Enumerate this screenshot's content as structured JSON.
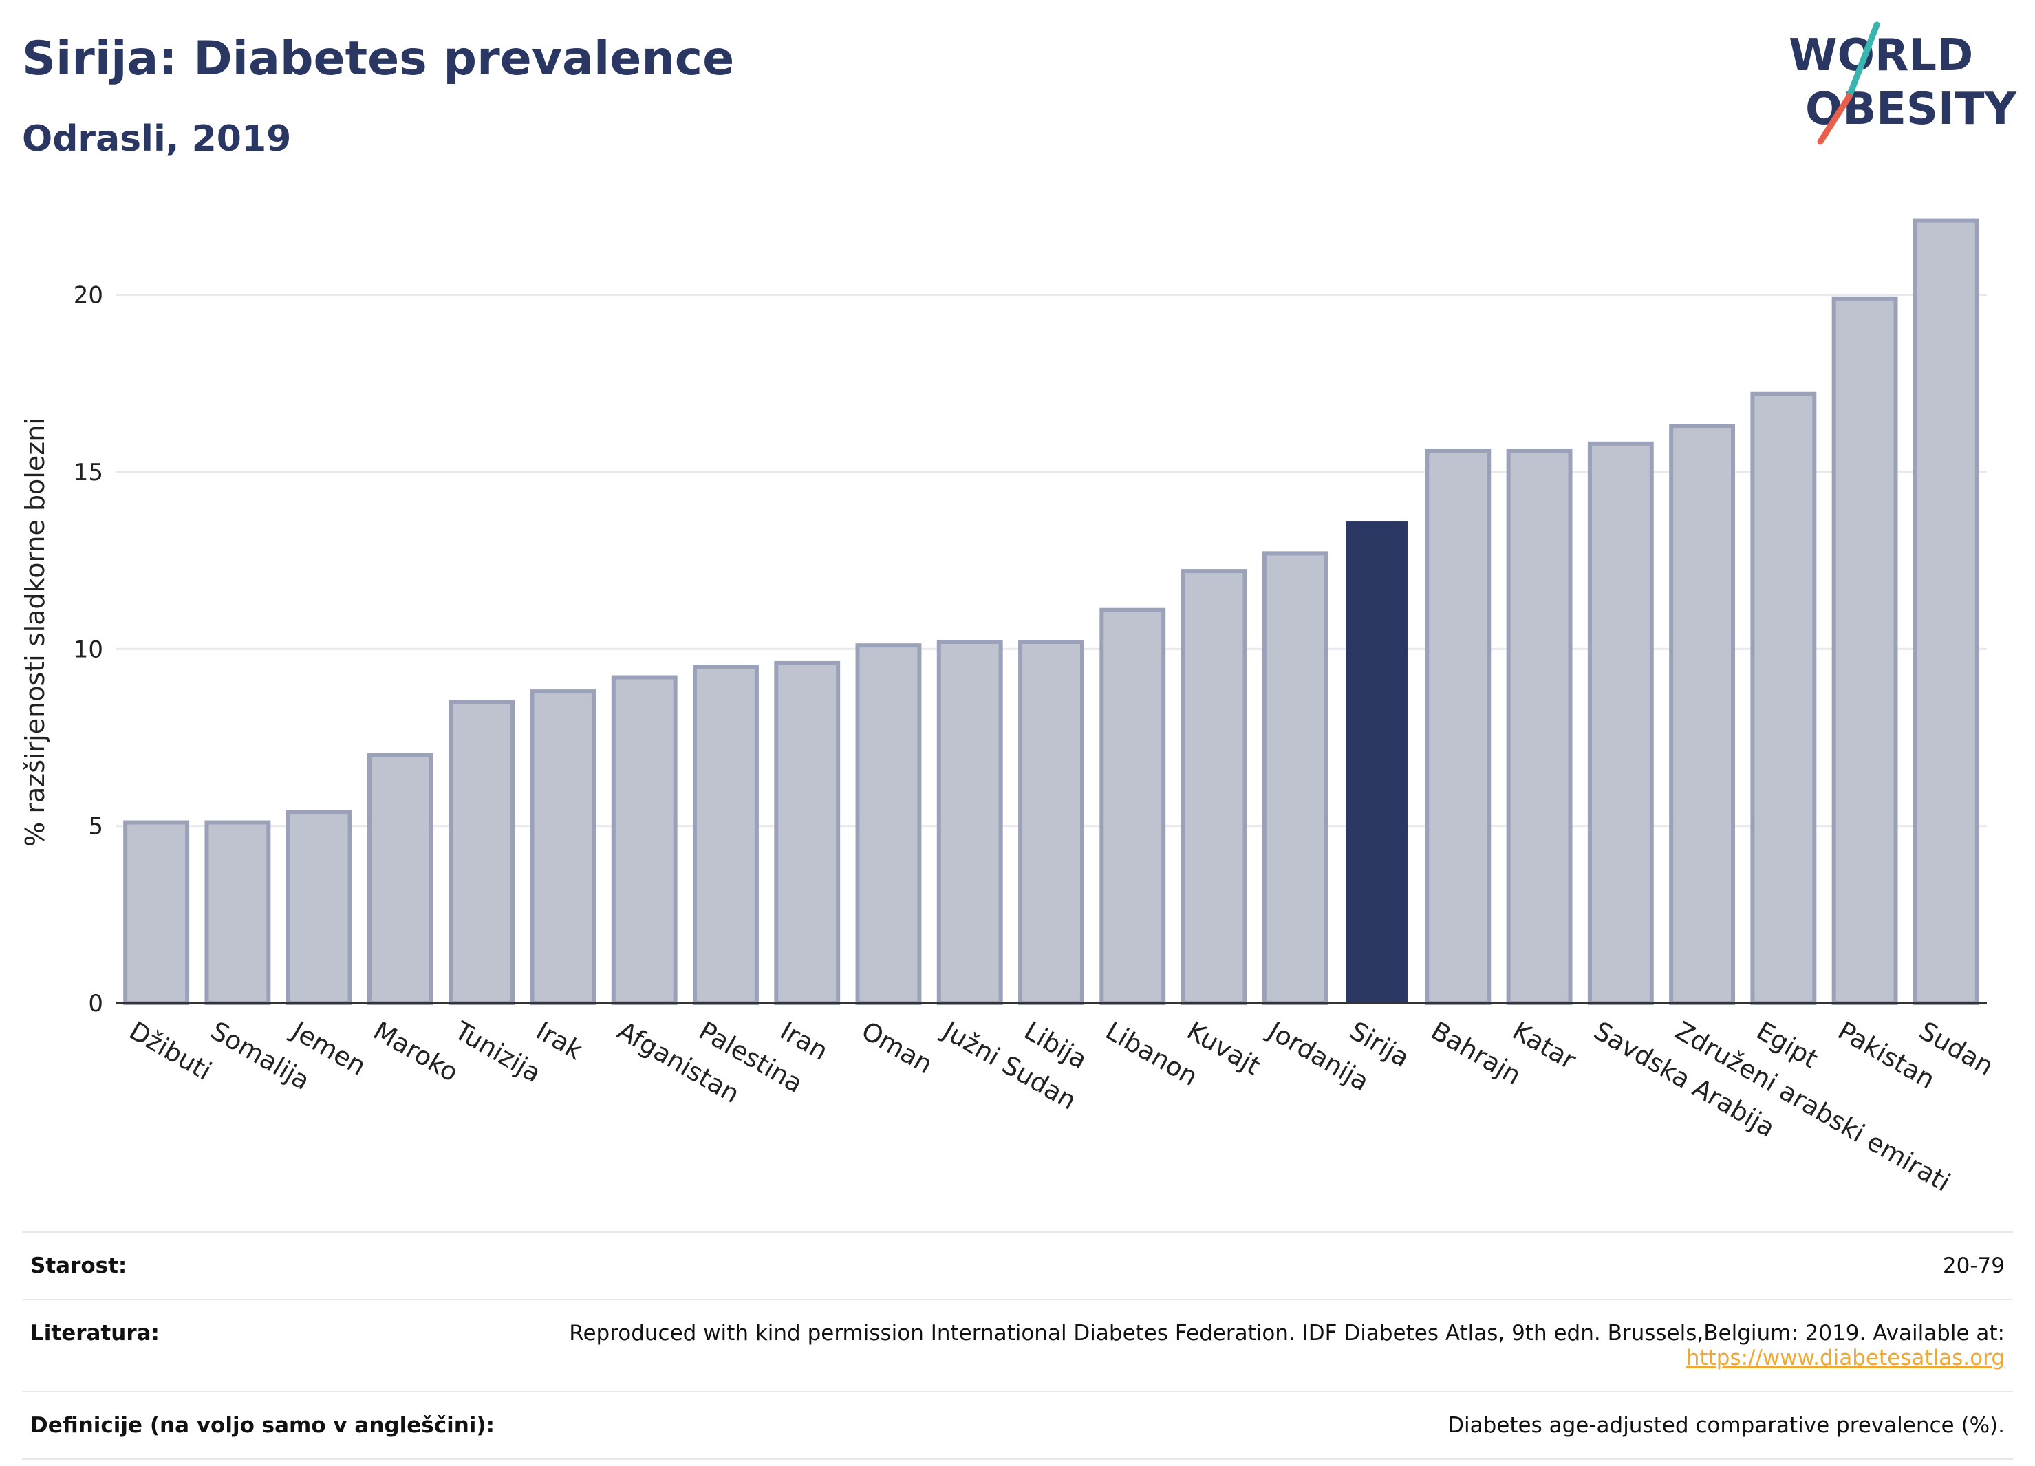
{
  "header": {
    "title": "Sirija: Diabetes prevalence",
    "subtitle": "Odrasli, 2019"
  },
  "logo": {
    "line1": "WORLD",
    "line2": "OBESITY",
    "icon": "world-obesity-logo"
  },
  "chart_data": {
    "type": "bar",
    "ylabel": "% razširjenosti sladkorne bolezni",
    "xlabel": "",
    "ylim": [
      0,
      22.5
    ],
    "yticks": [
      0,
      5,
      10,
      15,
      20
    ],
    "grid": true,
    "categories": [
      "Džibuti",
      "Somalija",
      "Jemen",
      "Maroko",
      "Tunizija",
      "Irak",
      "Afganistan",
      "Palestina",
      "Iran",
      "Oman",
      "Južni Sudan",
      "Libija",
      "Libanon",
      "Kuvajt",
      "Jordanija",
      "Sirija",
      "Bahrajn",
      "Katar",
      "Savdska Arabija",
      "Združeni arabski emirati",
      "Egipt",
      "Pakistan",
      "Sudan"
    ],
    "values": [
      5.1,
      5.1,
      5.4,
      7.0,
      8.5,
      8.8,
      9.2,
      9.5,
      9.6,
      10.1,
      10.2,
      10.2,
      11.1,
      12.2,
      12.7,
      13.6,
      15.6,
      15.6,
      15.8,
      16.3,
      17.2,
      19.9,
      22.1
    ],
    "highlight": "Sirija",
    "colors": {
      "bar": "#bfc3d0",
      "bar_border": "#9aa1b8",
      "highlight": "#2b3763",
      "grid": "#e8e9ee",
      "axis": "#333333"
    }
  },
  "meta": [
    {
      "label": "Starost:",
      "value": "20-79"
    },
    {
      "label": "Literatura:",
      "value": "Reproduced with kind permission International Diabetes Federation. IDF Diabetes Atlas, 9th edn. Brussels,Belgium: 2019. Available at:",
      "link": "https://www.diabetesatlas.org"
    },
    {
      "label": "Definicije (na voljo samo v angleščini):",
      "value": "Diabetes age-adjusted comparative prevalence (%)."
    }
  ]
}
